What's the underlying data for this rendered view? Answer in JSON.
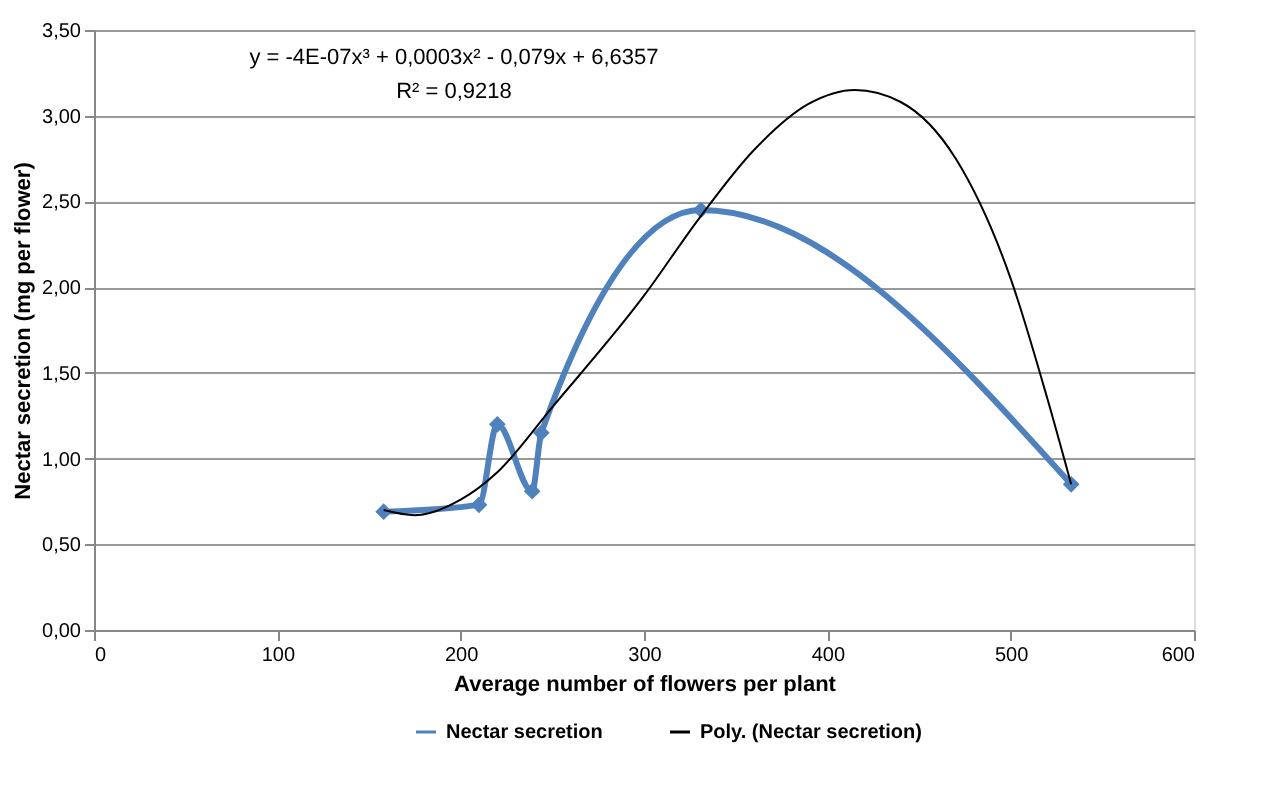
{
  "chart_data": {
    "type": "line",
    "xlabel": "Average number of flowers per plant",
    "ylabel": "Nectar secretion (mg per flower)",
    "xlim": [
      0,
      600
    ],
    "xticks": [
      0,
      100,
      200,
      300,
      400,
      500,
      600
    ],
    "ylim": [
      0,
      3.5
    ],
    "yticks": [
      {
        "value": 0,
        "label": "0,00"
      },
      {
        "value": 0.5,
        "label": "0,50"
      },
      {
        "value": 1,
        "label": "1,00"
      },
      {
        "value": 1.5,
        "label": "1,50"
      },
      {
        "value": 2,
        "label": "2,00"
      },
      {
        "value": 2.5,
        "label": "2,50"
      },
      {
        "value": 3,
        "label": "3,00"
      },
      {
        "value": 3.5,
        "label": "3,50"
      }
    ],
    "grid": "y",
    "legend": "bottom",
    "series": [
      {
        "name": "Nectar secretion",
        "color": "#4f81bd",
        "marker": "diamond",
        "x": [
          158,
          210,
          220,
          239,
          244,
          331,
          533
        ],
        "values": [
          0.69,
          0.73,
          1.2,
          0.81,
          1.15,
          2.45,
          0.85
        ]
      },
      {
        "name": "Poly. (Nectar secretion)",
        "color": "#000000",
        "marker": "none",
        "x": [
          158,
          175,
          200,
          220,
          250,
          300,
          330,
          360,
          390,
          415,
          440,
          470,
          500,
          520,
          533
        ],
        "values": [
          0.7,
          0.67,
          0.76,
          0.92,
          1.3,
          1.95,
          2.4,
          2.8,
          3.07,
          3.15,
          3.08,
          2.75,
          2.05,
          1.35,
          0.85
        ]
      }
    ],
    "annotations": [
      "y = -4E-07x³ + 0,0003x² - 0,079x + 6,6357",
      "R² = 0,9218"
    ]
  }
}
